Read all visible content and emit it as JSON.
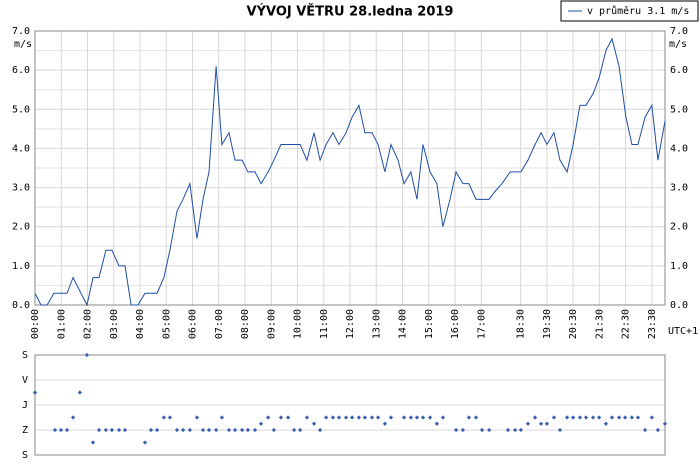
{
  "chart_data": [
    {
      "type": "line",
      "title": "VÝVOJ VĚTRU  28.ledna 2019",
      "y_unit": "m/s",
      "x_label": "UTC+1",
      "xlim": [
        0,
        24
      ],
      "xticks": [
        {
          "value": 0,
          "label": "00:00"
        },
        {
          "value": 1,
          "label": "01:00"
        },
        {
          "value": 2,
          "label": "02:00"
        },
        {
          "value": 3,
          "label": "03:00"
        },
        {
          "value": 4,
          "label": "04:00"
        },
        {
          "value": 5,
          "label": "05:00"
        },
        {
          "value": 6,
          "label": "06:00"
        },
        {
          "value": 7,
          "label": "07:00"
        },
        {
          "value": 8,
          "label": "08:00"
        },
        {
          "value": 9,
          "label": "09:00"
        },
        {
          "value": 10,
          "label": "10:00"
        },
        {
          "value": 11,
          "label": "11:00"
        },
        {
          "value": 12,
          "label": "12:00"
        },
        {
          "value": 13,
          "label": "13:00"
        },
        {
          "value": 14,
          "label": "14:00"
        },
        {
          "value": 15,
          "label": "15:00"
        },
        {
          "value": 16,
          "label": "16:00"
        },
        {
          "value": 17,
          "label": "17:00"
        },
        {
          "value": 18.5,
          "label": "18:30"
        },
        {
          "value": 19.5,
          "label": "19:30"
        },
        {
          "value": 20.5,
          "label": "20:30"
        },
        {
          "value": 21.5,
          "label": "21:30"
        },
        {
          "value": 22.5,
          "label": "22:30"
        },
        {
          "value": 23.5,
          "label": "23:30"
        }
      ],
      "ylim": [
        0,
        7
      ],
      "yticks": [
        {
          "value": 0,
          "label": "0.0"
        },
        {
          "value": 1,
          "label": "1.0"
        },
        {
          "value": 2,
          "label": "2.0"
        },
        {
          "value": 3,
          "label": "3.0"
        },
        {
          "value": 4,
          "label": "4.0"
        },
        {
          "value": 5,
          "label": "5.0"
        },
        {
          "value": 6,
          "label": "6.0"
        },
        {
          "value": 7,
          "label": "7.0"
        }
      ],
      "minor_yticks": [
        0.5,
        1.5,
        2.5,
        3.5,
        4.5,
        5.5,
        6.5
      ],
      "grid": true,
      "x": [
        0,
        0.23,
        0.46,
        0.72,
        1.22,
        1.45,
        1.98,
        2.21,
        2.44,
        2.7,
        2.93,
        3.2,
        3.43,
        3.66,
        3.92,
        4.19,
        4.65,
        4.91,
        5.14,
        5.41,
        5.64,
        5.9,
        6.17,
        6.4,
        6.63,
        6.9,
        7.12,
        7.39,
        7.62,
        7.89,
        8.11,
        8.38,
        8.61,
        8.88,
        9.1,
        9.37,
        9.64,
        10.1,
        10.36,
        10.63,
        10.86,
        11.09,
        11.35,
        11.58,
        11.85,
        12.08,
        12.34,
        12.57,
        12.84,
        13.07,
        13.33,
        13.56,
        13.83,
        14.06,
        14.32,
        14.55,
        14.78,
        15.05,
        15.31,
        15.54,
        15.81,
        16.04,
        16.3,
        16.53,
        16.8,
        17.3,
        17.52,
        17.79,
        18.1,
        18.51,
        18.78,
        19.05,
        19.28,
        19.5,
        19.77,
        20,
        20.27,
        20.5,
        20.76,
        20.99,
        21.26,
        21.49,
        21.75,
        21.98,
        22.25,
        22.51,
        22.74,
        22.97,
        23.24,
        23.5,
        23.73,
        24
      ],
      "series": [
        {
          "name": "v průměru 3.1 m/s",
          "color": "#1f4fa8",
          "values": [
            0.3,
            0,
            0,
            0.3,
            0.3,
            0.7,
            0,
            0.7,
            0.7,
            1.4,
            1.4,
            1,
            1,
            0,
            0,
            0.3,
            0.3,
            0.7,
            1.4,
            2.4,
            2.7,
            3.1,
            1.7,
            2.7,
            3.4,
            6.1,
            4.1,
            4.4,
            3.7,
            3.7,
            3.4,
            3.4,
            3.1,
            3.4,
            3.7,
            4.1,
            4.1,
            4.1,
            3.7,
            4.4,
            3.7,
            4.1,
            4.4,
            4.1,
            4.4,
            4.8,
            5.1,
            4.4,
            4.4,
            4.1,
            3.4,
            4.1,
            3.7,
            3.1,
            3.4,
            2.7,
            4.1,
            3.4,
            3.1,
            2,
            2.7,
            3.4,
            3.1,
            3.1,
            2.7,
            2.7,
            2.9,
            3.1,
            3.4,
            3.4,
            3.7,
            4.1,
            4.4,
            4.1,
            4.4,
            3.7,
            3.4,
            4.1,
            5.1,
            5.1,
            5.4,
            5.8,
            6.5,
            6.8,
            6.1,
            4.8,
            4.1,
            4.1,
            4.8,
            5.1,
            3.7,
            4.7
          ]
        }
      ]
    },
    {
      "type": "scatter",
      "xlim": [
        0,
        24
      ],
      "ylim": [
        360,
        0
      ],
      "yticks": [
        {
          "value": 0,
          "label": "S"
        },
        {
          "value": 90,
          "label": "V"
        },
        {
          "value": 180,
          "label": "J"
        },
        {
          "value": 270,
          "label": "Z"
        },
        {
          "value": 360,
          "label": "S"
        }
      ],
      "grid": true,
      "color": "#3a5fb0",
      "x": [
        0,
        0.76,
        0.99,
        1.22,
        1.45,
        1.71,
        1.98,
        2.21,
        2.44,
        2.7,
        2.93,
        3.2,
        3.43,
        4.19,
        4.42,
        4.65,
        4.91,
        5.14,
        5.41,
        5.64,
        5.9,
        6.17,
        6.4,
        6.63,
        6.9,
        7.12,
        7.39,
        7.62,
        7.89,
        8.11,
        8.38,
        8.61,
        8.88,
        9.1,
        9.37,
        9.64,
        9.87,
        10.1,
        10.36,
        10.63,
        10.86,
        11.09,
        11.35,
        11.58,
        11.85,
        12.08,
        12.34,
        12.57,
        12.84,
        13.07,
        13.33,
        13.56,
        14.06,
        14.32,
        14.55,
        14.78,
        15.05,
        15.31,
        15.54,
        16.04,
        16.3,
        16.53,
        16.8,
        17.03,
        17.3,
        18.02,
        18.29,
        18.51,
        18.78,
        19.05,
        19.28,
        19.5,
        19.77,
        20,
        20.27,
        20.5,
        20.76,
        20.99,
        21.26,
        21.49,
        21.75,
        21.98,
        22.25,
        22.48,
        22.74,
        22.97,
        23.24,
        23.5,
        23.73,
        24
      ],
      "values": [
        135,
        270,
        270,
        270,
        225,
        135,
        0,
        315,
        270,
        270,
        270,
        270,
        270,
        315,
        270,
        270,
        225,
        225,
        270,
        270,
        270,
        225,
        270,
        270,
        270,
        225,
        270,
        270,
        270,
        270,
        270,
        247.5,
        225,
        270,
        225,
        225,
        270,
        270,
        225,
        247.5,
        270,
        225,
        225,
        225,
        225,
        225,
        225,
        225,
        225,
        225,
        247.5,
        225,
        225,
        225,
        225,
        225,
        225,
        247.5,
        225,
        270,
        270,
        225,
        225,
        270,
        270,
        270,
        270,
        270,
        247.5,
        225,
        247.5,
        247.5,
        225,
        270,
        225,
        225,
        225,
        225,
        225,
        225,
        247.5,
        225,
        225,
        225,
        225,
        225,
        270,
        225,
        270,
        247.5
      ]
    }
  ]
}
